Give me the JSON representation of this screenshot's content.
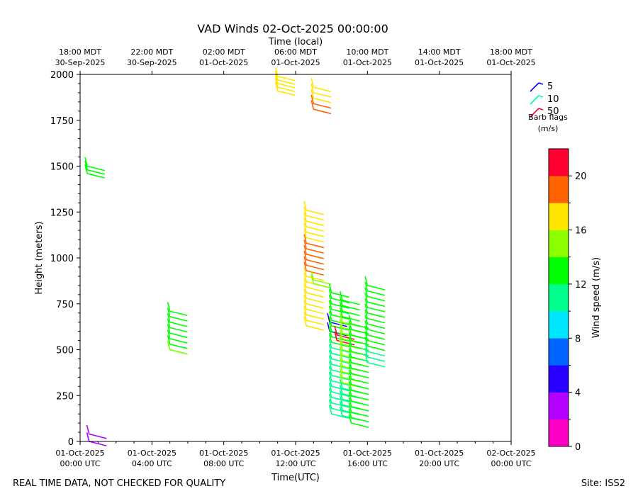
{
  "chart_data": {
    "type": "wind-barb",
    "title": "VAD Winds 02-Oct-2025 00:00:00",
    "top_axis_label": "Time (local)",
    "xlabel": "Time(UTC)",
    "ylabel": "Height (meters)",
    "ylim": [
      0,
      2000
    ],
    "xlim_hours_since_2025_10_01_00_utc": [
      0,
      24
    ],
    "y_ticks": [
      "0",
      "250",
      "500",
      "750",
      "1000",
      "1250",
      "1500",
      "1750",
      "2000"
    ],
    "x_ticks_utc": [
      {
        "line1": "01-Oct-2025",
        "line2": "00:00 UTC"
      },
      {
        "line1": "01-Oct-2025",
        "line2": "04:00 UTC"
      },
      {
        "line1": "01-Oct-2025",
        "line2": "08:00 UTC"
      },
      {
        "line1": "01-Oct-2025",
        "line2": "12:00 UTC"
      },
      {
        "line1": "01-Oct-2025",
        "line2": "16:00 UTC"
      },
      {
        "line1": "01-Oct-2025",
        "line2": "20:00 UTC"
      },
      {
        "line1": "02-Oct-2025",
        "line2": "00:00 UTC"
      }
    ],
    "x_ticks_local": [
      {
        "line1": "18:00 MDT",
        "line2": "30-Sep-2025"
      },
      {
        "line1": "22:00 MDT",
        "line2": "30-Sep-2025"
      },
      {
        "line1": "02:00 MDT",
        "line2": "01-Oct-2025"
      },
      {
        "line1": "06:00 MDT",
        "line2": "01-Oct-2025"
      },
      {
        "line1": "10:00 MDT",
        "line2": "01-Oct-2025"
      },
      {
        "line1": "14:00 MDT",
        "line2": "01-Oct-2025"
      },
      {
        "line1": "18:00 MDT",
        "line2": "01-Oct-2025"
      }
    ],
    "legend": {
      "entries": [
        {
          "label": "5",
          "color": "#0000ff"
        },
        {
          "label": "10",
          "color": "#00ff9c"
        },
        {
          "label": "50",
          "color": "#ff0030"
        }
      ],
      "title_line1": "Barb flags",
      "title_line2": "(m/s)",
      "placement": "top-right"
    },
    "colorbar": {
      "label": "Wind speed (m/s)",
      "ticks": [
        "0",
        "4",
        "8",
        "12",
        "16",
        "20"
      ],
      "range": [
        0,
        22
      ],
      "bins": [
        "#ff00c8",
        "#b400ff",
        "#2800ff",
        "#0064ff",
        "#00e6ff",
        "#00ff8c",
        "#00ff00",
        "#8cff00",
        "#ffe600",
        "#ff6400",
        "#ff0030"
      ]
    },
    "barb_groups": [
      {
        "hour": 0.5,
        "heights": [
          0,
          40
        ],
        "speed": 3
      },
      {
        "hour": 0.4,
        "heights": [
          1460,
          1480,
          1500
        ],
        "speed": 13
      },
      {
        "hour": 5.0,
        "heights": [
          500,
          530,
          560,
          590,
          620,
          650,
          680,
          710
        ],
        "speed": 13
      },
      {
        "hour": 5.0,
        "heights": [
          500
        ],
        "speed": 15
      },
      {
        "hour": 11.0,
        "heights": [
          1910,
          1930,
          1950,
          1970,
          1990
        ],
        "speed": 17
      },
      {
        "hour": 12.6,
        "heights": [
          630,
          660,
          690,
          720,
          750,
          780,
          810,
          840,
          870,
          900
        ],
        "speed": 17
      },
      {
        "hour": 12.6,
        "heights": [
          930,
          960,
          990,
          1020,
          1050,
          1080
        ],
        "speed": 19
      },
      {
        "hour": 12.6,
        "heights": [
          1110,
          1140,
          1170,
          1200,
          1230,
          1260
        ],
        "speed": 17
      },
      {
        "hour": 13.0,
        "heights": [
          860,
          880
        ],
        "speed": 15
      },
      {
        "hour": 13.0,
        "heights": [
          1810,
          1840
        ],
        "speed": 19
      },
      {
        "hour": 13.0,
        "heights": [
          1870,
          1900,
          1930
        ],
        "speed": 17
      },
      {
        "hour": 13.9,
        "heights": [
          600,
          650
        ],
        "speed": 5
      },
      {
        "hour": 14.0,
        "heights": [
          150,
          180,
          210,
          240,
          270,
          300,
          330,
          360,
          390,
          420,
          450,
          480,
          510
        ],
        "speed": 11
      },
      {
        "hour": 14.0,
        "heights": [
          540,
          570,
          600,
          630,
          660,
          690,
          720,
          750,
          780,
          810
        ],
        "speed": 13
      },
      {
        "hour": 14.3,
        "heights": [
          550,
          580
        ],
        "speed": 21
      },
      {
        "hour": 14.6,
        "heights": [
          140,
          170,
          200,
          230,
          260,
          290
        ],
        "speed": 11
      },
      {
        "hour": 14.6,
        "heights": [
          320,
          350,
          380,
          410,
          440,
          470,
          500,
          530,
          560,
          590,
          620,
          650
        ],
        "speed": 15
      },
      {
        "hour": 14.6,
        "heights": [
          680,
          710,
          740,
          770
        ],
        "speed": 13
      },
      {
        "hour": 15.1,
        "heights": [
          100,
          130,
          160,
          190,
          220,
          250,
          280,
          310,
          340,
          370,
          400,
          430,
          460,
          490,
          520,
          550,
          580,
          610,
          640
        ],
        "speed": 13
      },
      {
        "hour": 16.0,
        "heights": [
          430,
          460,
          490
        ],
        "speed": 11
      },
      {
        "hour": 16.0,
        "heights": [
          520,
          550,
          580,
          610,
          640,
          670,
          700,
          730,
          760,
          790,
          820,
          850
        ],
        "speed": 13
      }
    ]
  },
  "footer": {
    "left": "REAL TIME DATA, NOT CHECKED FOR QUALITY",
    "right": "Site: ISS2"
  }
}
